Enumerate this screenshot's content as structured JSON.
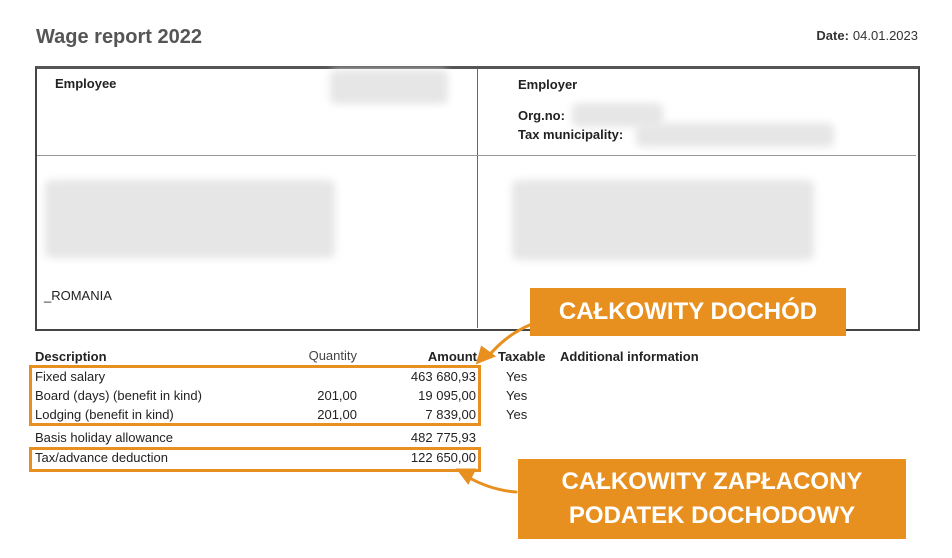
{
  "header": {
    "title": "Wage report 2022",
    "date_label": "Date:",
    "date_value": "04.01.2023"
  },
  "employee": {
    "label": "Employee",
    "country": "_ROMANIA"
  },
  "employer": {
    "label": "Employer",
    "org_no_label": "Org.no:",
    "tax_municipality_label": "Tax municipality:"
  },
  "table": {
    "headers": [
      "Description",
      "Quantity",
      "Amount",
      "Taxable",
      "Additional information"
    ],
    "rows": [
      {
        "description": "Fixed salary",
        "quantity": "",
        "amount": "463 680,93",
        "taxable": "Yes"
      },
      {
        "description": "Board (days) (benefit in kind)",
        "quantity": "201,00",
        "amount": "19 095,00",
        "taxable": "Yes"
      },
      {
        "description": "Lodging (benefit in kind)",
        "quantity": "201,00",
        "amount": "7 839,00",
        "taxable": "Yes"
      },
      {
        "description": "Basis holiday allowance",
        "quantity": "",
        "amount": "482 775,93",
        "taxable": ""
      },
      {
        "description": "Tax/advance deduction",
        "quantity": "",
        "amount": "122 650,00",
        "taxable": ""
      }
    ]
  },
  "callouts": {
    "total_income": "CAŁKOWITY DOCHÓD",
    "total_tax_line1": "CAŁKOWITY ZAPŁACONY",
    "total_tax_line2": "PODATEK DOCHODOWY"
  },
  "colors": {
    "accent": "#e8901f"
  }
}
